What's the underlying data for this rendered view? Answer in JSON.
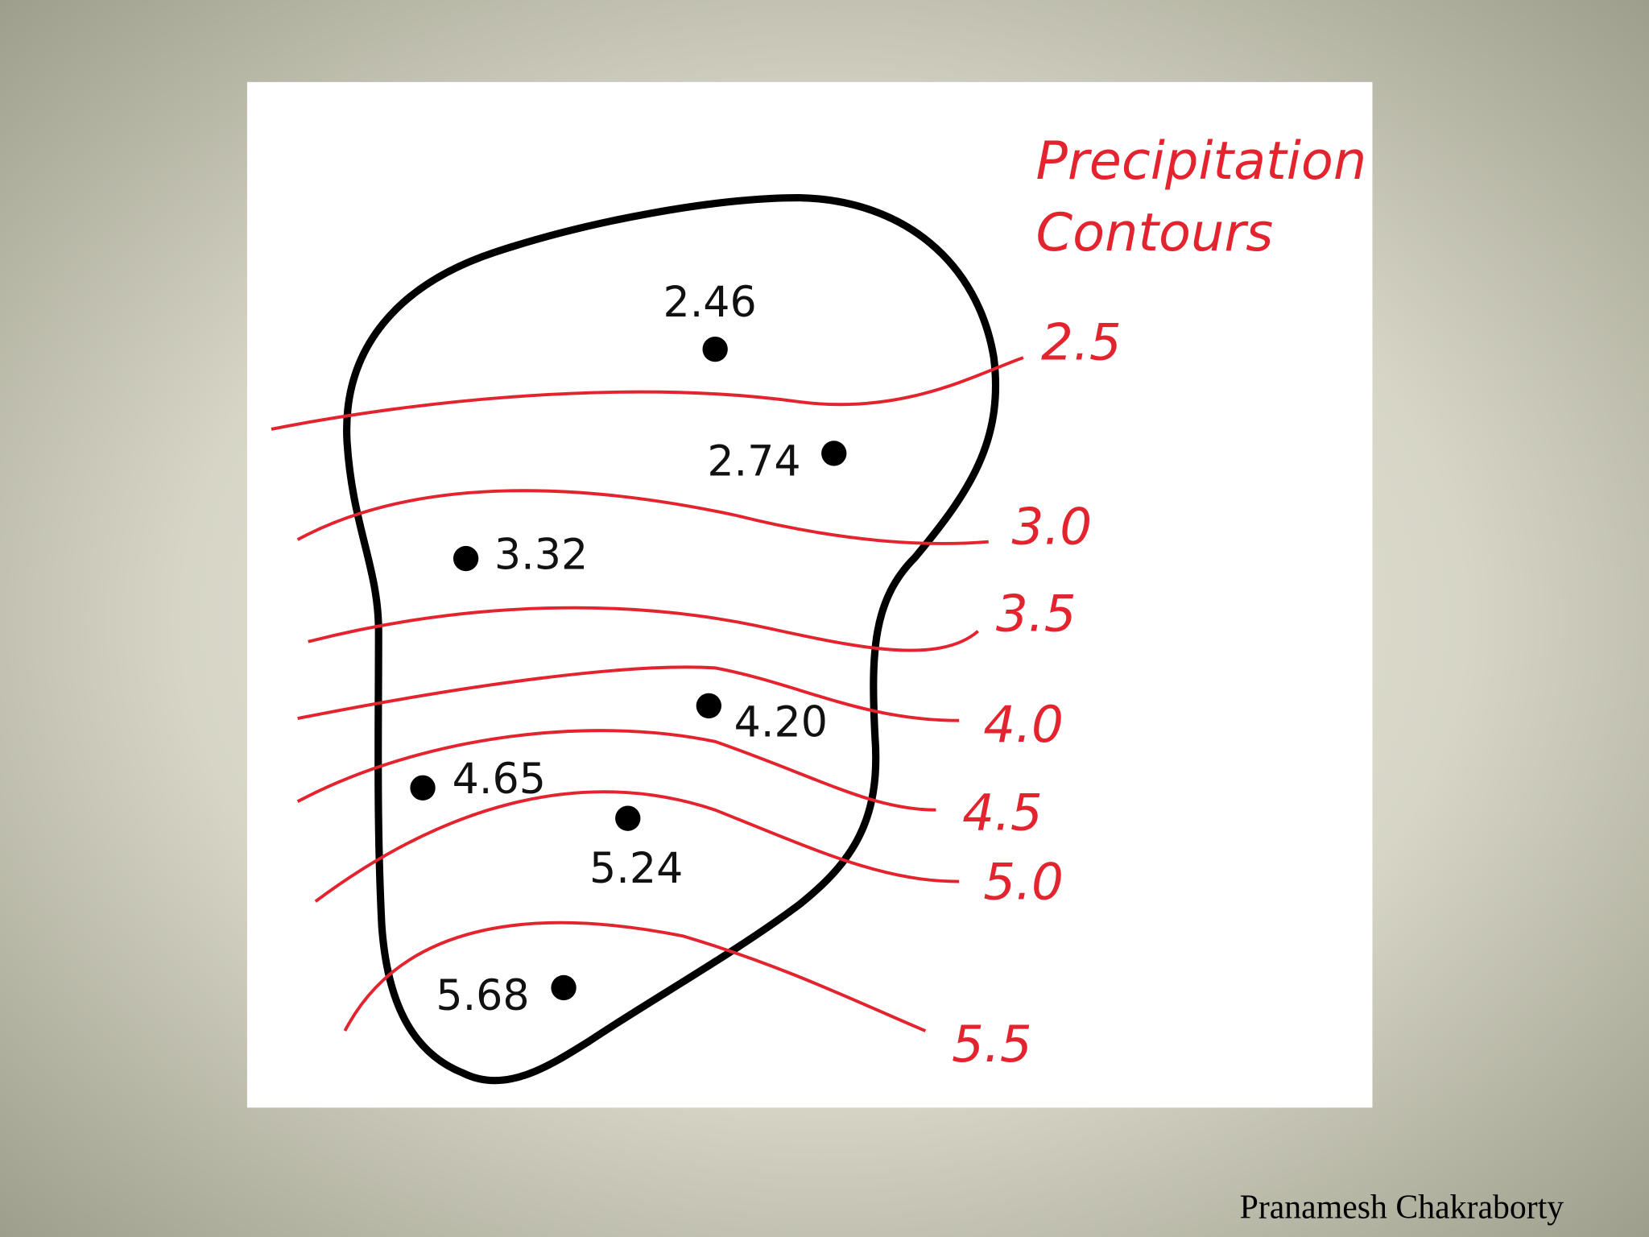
{
  "diagram": {
    "title_lines": [
      "Precipitation",
      "Contours"
    ],
    "contours": [
      {
        "label": "2.5"
      },
      {
        "label": "3.0"
      },
      {
        "label": "3.5"
      },
      {
        "label": "4.0"
      },
      {
        "label": "4.5"
      },
      {
        "label": "5.0"
      },
      {
        "label": "5.5"
      }
    ],
    "stations": [
      {
        "label": "2.46"
      },
      {
        "label": "2.74"
      },
      {
        "label": "3.32"
      },
      {
        "label": "4.20"
      },
      {
        "label": "4.65"
      },
      {
        "label": "5.24"
      },
      {
        "label": "5.68"
      }
    ]
  },
  "footer": {
    "credit": "Pranamesh Chakraborty"
  }
}
